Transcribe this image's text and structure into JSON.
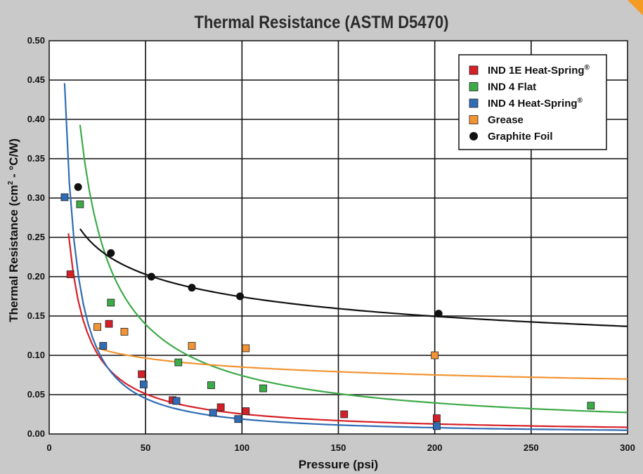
{
  "chart_data": {
    "type": "scatter",
    "title": "Thermal Resistance (ASTM D5470)",
    "xlabel": "Pressure (psi)",
    "ylabel_parts": [
      "Thermal Resistance (cm",
      "2",
      " - °C/W)"
    ],
    "xlim": [
      0,
      300
    ],
    "ylim": [
      0,
      0.5
    ],
    "xticks": [
      0,
      50,
      100,
      150,
      200,
      250,
      300
    ],
    "yticks": [
      0.0,
      0.05,
      0.1,
      0.15,
      0.2,
      0.25,
      0.3,
      0.35,
      0.4,
      0.45,
      0.5
    ],
    "ytick_labels": [
      "0.00",
      "0.05",
      "0.10",
      "0.15",
      "0.20",
      "0.25",
      "0.30",
      "0.35",
      "0.40",
      "0.45",
      "0.50"
    ],
    "grid": true,
    "legend_position": "top-right",
    "series": [
      {
        "name": "IND 1E Heat-Spring",
        "name_mark": "®",
        "color": "#d62027",
        "marker": "square",
        "points": [
          [
            11,
            0.203
          ],
          [
            31,
            0.14
          ],
          [
            48,
            0.076
          ],
          [
            64,
            0.043
          ],
          [
            89,
            0.034
          ],
          [
            102,
            0.029
          ],
          [
            153,
            0.025
          ],
          [
            201,
            0.02
          ]
        ],
        "trend": {
          "a": 2.55,
          "b": 1.0,
          "x_from": 10,
          "x_to": 300
        }
      },
      {
        "name": "IND 4 Flat",
        "name_mark": "",
        "color": "#3daa48",
        "marker": "square",
        "points": [
          [
            16,
            0.292
          ],
          [
            32,
            0.167
          ],
          [
            67,
            0.091
          ],
          [
            84,
            0.062
          ],
          [
            111,
            0.058
          ],
          [
            281,
            0.036
          ]
        ],
        "trend": {
          "a": 4.9,
          "b": 0.91,
          "x_from": 16,
          "x_to": 300
        }
      },
      {
        "name": "IND 4 Heat-Spring",
        "name_mark": "®",
        "color": "#2f6cb4",
        "marker": "square",
        "points": [
          [
            8,
            0.301
          ],
          [
            28,
            0.112
          ],
          [
            49,
            0.063
          ],
          [
            66,
            0.042
          ],
          [
            85,
            0.027
          ],
          [
            98,
            0.019
          ],
          [
            201,
            0.01
          ]
        ],
        "trend": {
          "a": 6.0,
          "b": 1.25,
          "x_from": 8,
          "x_to": 300
        }
      },
      {
        "name": "Grease",
        "name_mark": "",
        "color": "#f29433",
        "marker": "square",
        "points": [
          [
            25,
            0.136
          ],
          [
            39,
            0.13
          ],
          [
            74,
            0.112
          ],
          [
            102,
            0.109
          ],
          [
            200,
            0.1
          ]
        ],
        "trend": {
          "a": 0.195,
          "b": 0.18,
          "x_from": 25,
          "x_to": 300
        }
      },
      {
        "name": "Graphite Foil",
        "name_mark": "",
        "color": "#111111",
        "marker": "circle",
        "points": [
          [
            15,
            0.314
          ],
          [
            32,
            0.23
          ],
          [
            53,
            0.2
          ],
          [
            74,
            0.186
          ],
          [
            99,
            0.175
          ],
          [
            202,
            0.153
          ]
        ],
        "trend": {
          "a": 0.48,
          "b": 0.22,
          "x_from": 16,
          "x_to": 300
        }
      }
    ]
  }
}
